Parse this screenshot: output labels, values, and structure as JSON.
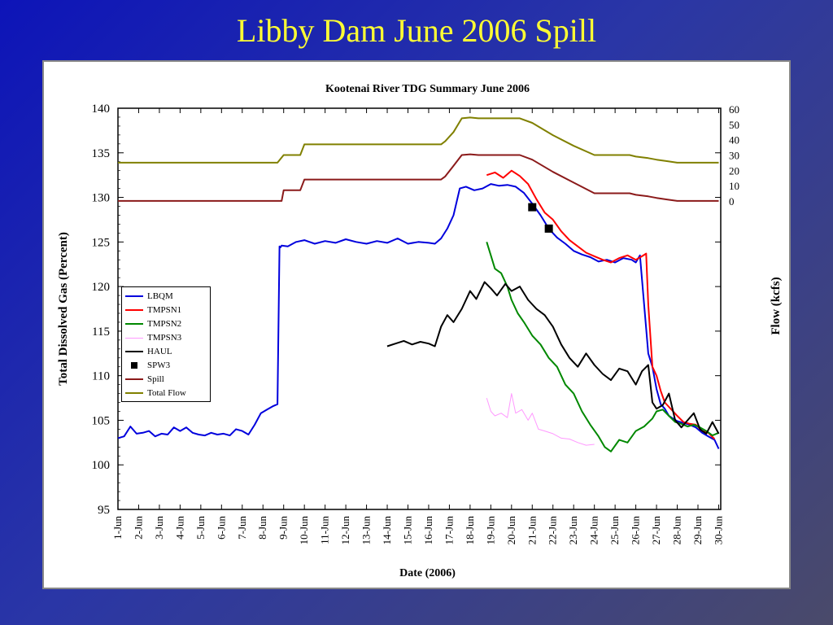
{
  "slide": {
    "title": "Libby Dam June 2006 Spill"
  },
  "chart_data": {
    "type": "line",
    "title": "Kootenai River TDG Summary June 2006",
    "xlabel": "Date (2006)",
    "ylabel": "Total Dissolved Gas (Percent)",
    "y2label": "Flow (kcfs)",
    "categories": [
      "1-Jun",
      "2-Jun",
      "3-Jun",
      "4-Jun",
      "5-Jun",
      "6-Jun",
      "7-Jun",
      "8-Jun",
      "9-Jun",
      "10-Jun",
      "11-Jun",
      "12-Jun",
      "13-Jun",
      "14-Jun",
      "15-Jun",
      "16-Jun",
      "17-Jun",
      "18-Jun",
      "19-Jun",
      "20-Jun",
      "21-Jun",
      "22-Jun",
      "23-Jun",
      "24-Jun",
      "25-Jun",
      "26-Jun",
      "27-Jun",
      "28-Jun",
      "29-Jun",
      "30-Jun"
    ],
    "ylim": [
      95,
      140
    ],
    "yticks": [
      "95",
      "100",
      "105",
      "110",
      "115",
      "120",
      "125",
      "130",
      "135",
      "140"
    ],
    "y2ticks": [
      "0",
      "10",
      "20",
      "30",
      "40",
      "50",
      "60"
    ],
    "y2lim": [
      0,
      60
    ],
    "legend_position": "middle-left",
    "series": [
      {
        "name": "LBQM",
        "color": "#0000dd",
        "style": "line",
        "x": [
          1,
          1.3,
          1.6,
          1.9,
          2.2,
          2.5,
          2.8,
          3.1,
          3.4,
          3.7,
          4,
          4.3,
          4.6,
          4.9,
          5.2,
          5.5,
          5.8,
          6.1,
          6.4,
          6.7,
          7,
          7.3,
          7.6,
          7.9,
          8.2,
          8.5,
          8.7,
          8.8,
          8.85,
          8.9,
          9.2,
          9.6,
          10,
          10.5,
          11,
          11.5,
          12,
          12.5,
          13,
          13.5,
          14,
          14.5,
          15,
          15.5,
          16,
          16.3,
          16.6,
          16.9,
          17.2,
          17.5,
          17.8,
          18.2,
          18.6,
          19,
          19.4,
          19.8,
          20.2,
          20.6,
          21,
          21.4,
          21.8,
          22.2,
          22.6,
          23,
          23.4,
          23.8,
          24.2,
          24.6,
          25,
          25.4,
          25.8,
          26,
          26.2,
          26.4,
          26.6,
          26.8,
          27,
          27.2,
          27.4,
          27.6,
          27.8,
          28,
          28.3,
          28.6,
          28.9,
          29.2,
          29.5,
          29.8,
          30
        ],
        "y": [
          103,
          103.2,
          104.3,
          103.5,
          103.6,
          103.8,
          103.2,
          103.5,
          103.4,
          104.2,
          103.8,
          104.2,
          103.6,
          103.4,
          103.3,
          103.6,
          103.4,
          103.5,
          103.3,
          104,
          103.8,
          103.4,
          104.5,
          105.8,
          106.2,
          106.6,
          106.8,
          124.5,
          124.4,
          124.6,
          124.5,
          125,
          125.2,
          124.8,
          125.1,
          124.9,
          125.3,
          125,
          124.8,
          125.1,
          124.9,
          125.4,
          124.8,
          125,
          124.9,
          124.8,
          125.4,
          126.5,
          128,
          131,
          131.2,
          130.8,
          131,
          131.5,
          131.3,
          131.4,
          131.2,
          130.5,
          129.3,
          128,
          126.5,
          125.5,
          124.8,
          124,
          123.6,
          123.3,
          122.8,
          123,
          122.7,
          123.2,
          123,
          122.7,
          123.5,
          118,
          112.5,
          111,
          108.5,
          106.8,
          106.3,
          105.5,
          105.2,
          104.9,
          104.7,
          104.5,
          104.2,
          103.6,
          103.2,
          102.8,
          101.8
        ]
      },
      {
        "name": "TMPSN1",
        "color": "#ff0000",
        "style": "line",
        "x": [
          18.8,
          19.2,
          19.6,
          20,
          20.4,
          20.8,
          21.2,
          21.6,
          22,
          22.4,
          22.8,
          23.2,
          23.6,
          24,
          24.4,
          24.8,
          25.2,
          25.6,
          26,
          26.3,
          26.5,
          26.6,
          26.8,
          27,
          27.2,
          27.4,
          27.6,
          27.8,
          28,
          28.3,
          28.6,
          28.9,
          29.2,
          29.5,
          29.8
        ],
        "y": [
          132.5,
          132.8,
          132.2,
          133,
          132.4,
          131.5,
          129.8,
          128.3,
          127.5,
          126.2,
          125.2,
          124.5,
          123.8,
          123.4,
          123,
          122.7,
          123.2,
          123.5,
          123,
          123.4,
          123.7,
          118,
          111,
          110,
          108.3,
          107,
          106.5,
          106,
          105.5,
          104.8,
          104.6,
          104.5,
          103.8,
          103.6,
          102.9
        ]
      },
      {
        "name": "TMPSN2",
        "color": "#008800",
        "style": "line",
        "x": [
          18.8,
          19,
          19.2,
          19.5,
          19.8,
          20,
          20.3,
          20.6,
          21,
          21.4,
          21.8,
          22.2,
          22.6,
          23,
          23.4,
          23.8,
          24.2,
          24.5,
          24.8,
          25.2,
          25.6,
          26,
          26.4,
          26.8,
          27,
          27.3,
          27.6,
          27.9,
          28.2,
          28.5,
          28.8,
          29.1,
          29.4,
          29.7,
          30
        ],
        "y": [
          125,
          123.5,
          122,
          121.5,
          120,
          118.5,
          117,
          116,
          114.5,
          113.5,
          112,
          111,
          109,
          108,
          106,
          104.5,
          103.2,
          102,
          101.5,
          102.8,
          102.5,
          103.8,
          104.3,
          105.2,
          106,
          106.2,
          105.5,
          104.8,
          104.6,
          104.3,
          104.5,
          104.2,
          103.8,
          103.3,
          103.6
        ]
      },
      {
        "name": "TMPSN3",
        "color": "#ff99ff",
        "style": "line",
        "x": [
          18.8,
          19,
          19.2,
          19.5,
          19.8,
          20,
          20.2,
          20.5,
          20.8,
          21,
          21.3,
          21.6,
          22,
          22.4,
          22.8,
          23.2,
          23.6,
          24
        ],
        "y": [
          107.5,
          106,
          105.5,
          105.8,
          105.3,
          108,
          105.8,
          106.2,
          105,
          105.8,
          104,
          103.8,
          103.5,
          103,
          102.9,
          102.5,
          102.2,
          102.3
        ]
      },
      {
        "name": "HAUL",
        "color": "#000000",
        "style": "line",
        "x": [
          14,
          14.4,
          14.8,
          15.2,
          15.6,
          16,
          16.3,
          16.6,
          16.9,
          17.2,
          17.6,
          18,
          18.3,
          18.7,
          19,
          19.3,
          19.7,
          20,
          20.4,
          20.8,
          21.2,
          21.6,
          22,
          22.4,
          22.8,
          23.2,
          23.6,
          24,
          24.4,
          24.8,
          25.2,
          25.6,
          26,
          26.3,
          26.6,
          26.8,
          27,
          27.3,
          27.6,
          27.9,
          28.2,
          28.5,
          28.8,
          29.1,
          29.4,
          29.7,
          30
        ],
        "y": [
          113.3,
          113.6,
          113.9,
          113.5,
          113.8,
          113.6,
          113.3,
          115.5,
          116.8,
          116,
          117.5,
          119.5,
          118.6,
          120.5,
          119.8,
          119,
          120.3,
          119.5,
          120,
          118.5,
          117.5,
          116.8,
          115.5,
          113.5,
          112,
          111,
          112.5,
          111.2,
          110.2,
          109.5,
          110.8,
          110.5,
          109,
          110.5,
          111.2,
          107,
          106.3,
          106.7,
          108,
          105,
          104.2,
          105,
          105.8,
          104,
          103.5,
          104.8,
          103.5
        ]
      },
      {
        "name": "SPW3",
        "color": "#000000",
        "style": "marker",
        "x": [
          21.0,
          21.8
        ],
        "y": [
          128.9,
          126.5
        ]
      },
      {
        "name": "Spill",
        "color": "#8b1a1a",
        "style": "line",
        "axis": "y2",
        "x": [
          1,
          8.9,
          9,
          9.8,
          10,
          16.6,
          16.8,
          17.2,
          17.6,
          18,
          18.4,
          20.4,
          21,
          22,
          23,
          24,
          24.5,
          25.7,
          26,
          26.6,
          27,
          27.5,
          28,
          30
        ],
        "y": [
          0,
          0,
          7,
          7,
          14,
          14,
          16,
          23,
          30,
          30.5,
          30,
          30,
          27,
          19,
          12,
          5,
          5,
          5,
          4,
          3,
          2,
          1,
          0,
          0
        ]
      },
      {
        "name": "Total Flow",
        "color": "#808000",
        "style": "line",
        "axis": "y2",
        "x": [
          1,
          8.7,
          9,
          9.8,
          10,
          16.6,
          16.8,
          17.2,
          17.6,
          18,
          18.4,
          20.4,
          21,
          22,
          23,
          24,
          24.5,
          25.7,
          26,
          26.6,
          27,
          27.5,
          28,
          30
        ],
        "y": [
          25,
          25,
          30,
          30,
          37,
          37,
          39,
          45,
          54,
          54.5,
          54,
          54,
          51,
          43,
          36,
          30,
          30,
          30,
          29,
          28,
          27,
          26,
          25,
          25
        ]
      }
    ]
  }
}
